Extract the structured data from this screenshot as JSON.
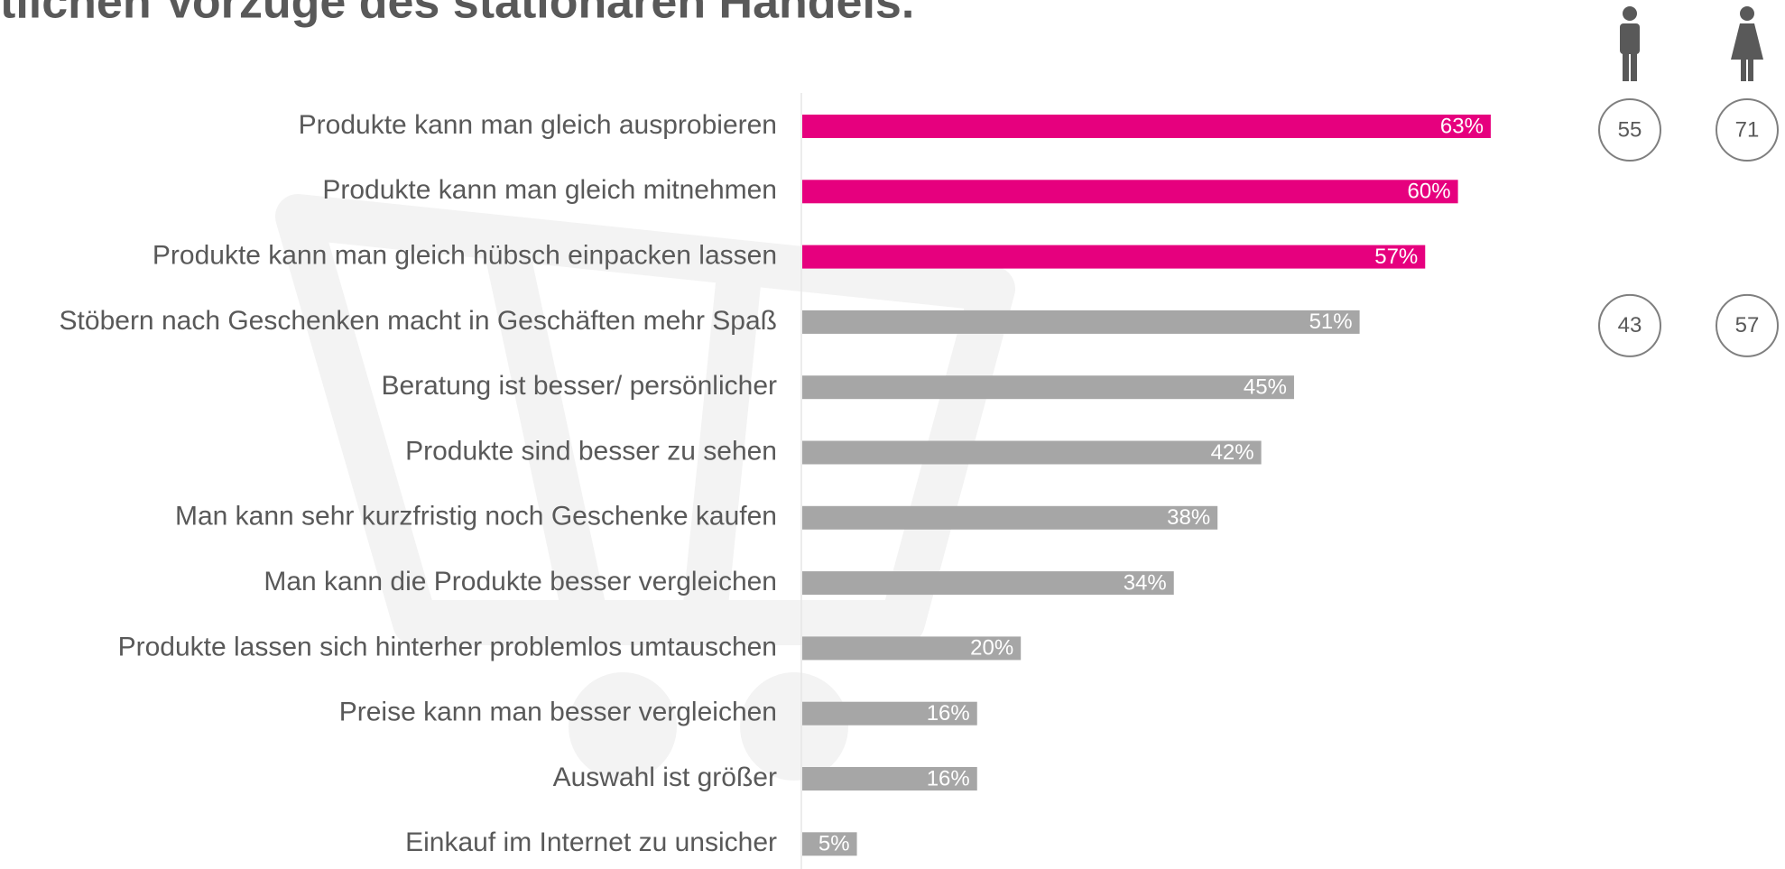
{
  "chart_data": {
    "type": "bar",
    "orientation": "horizontal",
    "title": "tlichen Vorzüge des stationären Handels.",
    "categories": [
      "Produkte kann man gleich ausprobieren",
      "Produkte kann man gleich mitnehmen",
      "Produkte kann man gleich hübsch einpacken lassen",
      "Stöbern nach Geschenken macht in Geschäften mehr Spaß",
      "Beratung ist besser/ persönlicher",
      "Produkte sind besser zu sehen",
      "Man kann sehr kurzfristig noch Geschenke kaufen",
      "Man kann die Produkte besser vergleichen",
      "Produkte lassen sich hinterher problemlos umtauschen",
      "Preise kann man besser vergleichen",
      "Auswahl ist größer",
      "Einkauf im Internet zu unsicher"
    ],
    "values": [
      63,
      60,
      57,
      51,
      45,
      42,
      38,
      34,
      20,
      16,
      16,
      5
    ],
    "value_labels": [
      "63%",
      "60%",
      "57%",
      "51%",
      "45%",
      "42%",
      "38%",
      "34%",
      "20%",
      "16%",
      "16%",
      "5%"
    ],
    "colors": [
      "#e6007e",
      "#e6007e",
      "#e6007e",
      "#a6a6a6",
      "#a6a6a6",
      "#a6a6a6",
      "#a6a6a6",
      "#a6a6a6",
      "#a6a6a6",
      "#a6a6a6",
      "#a6a6a6",
      "#a6a6a6"
    ],
    "men": [
      55,
      null,
      null,
      43,
      null,
      null,
      null,
      null,
      null,
      null,
      null,
      null
    ],
    "women": [
      71,
      null,
      null,
      57,
      null,
      null,
      null,
      null,
      null,
      null,
      null,
      null
    ]
  }
}
